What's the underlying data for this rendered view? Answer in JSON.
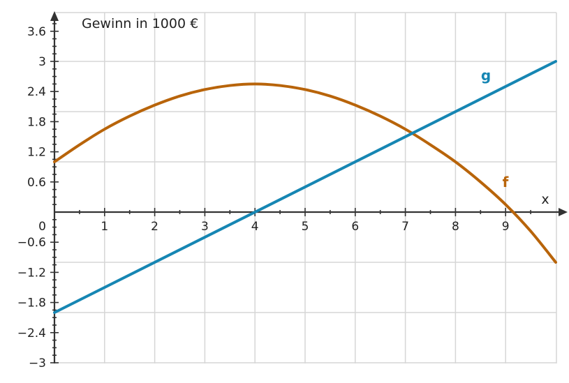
{
  "chart_data": {
    "type": "line",
    "title": "",
    "ylabel": "Gewinn in 1000 €",
    "xlabel": "x",
    "xlim": [
      0,
      10
    ],
    "ylim": [
      -3,
      3.9
    ],
    "grid": true,
    "x_ticks": [
      1,
      2,
      3,
      4,
      5,
      6,
      7,
      8,
      9
    ],
    "x_tick_labels": [
      "1",
      "2",
      "3",
      "4",
      "5",
      "6",
      "7",
      "8",
      "9"
    ],
    "y_ticks": [
      3.6,
      3,
      2.4,
      1.8,
      1.2,
      0.6,
      -0.6,
      -1.2,
      -1.8,
      -2.4,
      -3
    ],
    "y_tick_labels": [
      "3.6",
      "3",
      "2.4",
      "1.8",
      "1.2",
      "0.6",
      "−0.6",
      "−1.2",
      "−1.8",
      "−2.4",
      "−3"
    ],
    "origin_label": "0",
    "series": [
      {
        "name": "f",
        "color": "#b8640a",
        "x": [
          0,
          0.5,
          1,
          1.5,
          2,
          2.5,
          3,
          3.5,
          4,
          4.5,
          5,
          5.5,
          6,
          6.5,
          7,
          7.5,
          8,
          8.5,
          9,
          9.5,
          10
        ],
        "y": [
          1.0,
          1.34,
          1.65,
          1.91,
          2.13,
          2.31,
          2.44,
          2.52,
          2.55,
          2.52,
          2.44,
          2.31,
          2.13,
          1.91,
          1.65,
          1.34,
          1.0,
          0.6,
          0.15,
          -0.38,
          -1.0
        ]
      },
      {
        "name": "g",
        "color": "#1686b3",
        "x": [
          0,
          10
        ],
        "y": [
          -2.0,
          3.0
        ]
      }
    ]
  }
}
